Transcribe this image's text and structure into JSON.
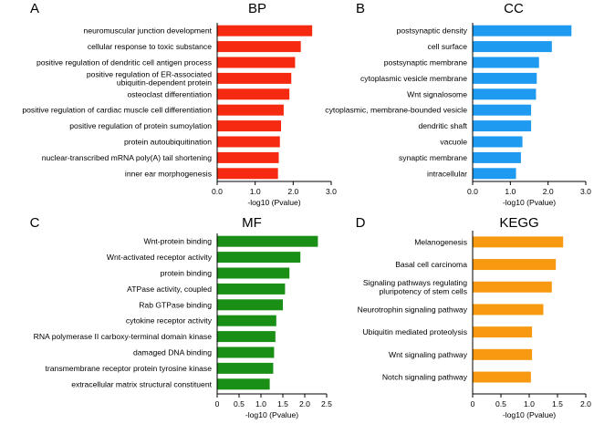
{
  "chart_data": [
    {
      "id": "bp",
      "type": "bar",
      "orientation": "horizontal",
      "letter": "A",
      "title": "BP",
      "color": "#f52a10",
      "xlabel": "-log10 (Pvalue)",
      "xlim": [
        0,
        3.0
      ],
      "xticks": [
        0,
        1,
        2,
        3
      ],
      "xtick_labels": [
        "0.0",
        "1.0",
        "2.0",
        "3.0"
      ],
      "categories": [
        "neuromuscular junction development",
        "cellular response to toxic substance",
        "positive regulation of dendritic cell antigen process",
        "positive regulation of ER-associated\nubiquitin-dependent protein",
        "osteoclast differentiation",
        "positive regulation of cardiac muscle cell differentiation",
        "positive regulation of protein sumoylation",
        "protein autoubiquitination",
        "nuclear-transcribed mRNA poly(A) tail shortening",
        "inner ear morphogenesis"
      ],
      "values": [
        2.5,
        2.2,
        2.05,
        1.95,
        1.9,
        1.75,
        1.68,
        1.65,
        1.62,
        1.6
      ]
    },
    {
      "id": "cc",
      "type": "bar",
      "orientation": "horizontal",
      "letter": "B",
      "title": "CC",
      "color": "#1e9bf0",
      "xlabel": "-log10 (Pvalue)",
      "xlim": [
        0,
        3.0
      ],
      "xticks": [
        0,
        1,
        2,
        3
      ],
      "xtick_labels": [
        "0.0",
        "1.0",
        "2.0",
        "3.0"
      ],
      "categories": [
        "postsynaptic density",
        "cell surface",
        "postsynaptic membrane",
        "cytoplasmic vesicle membrane",
        "Wnt signalosome",
        "cytoplasmic, membrane-bounded vesicle",
        "dendritic shaft",
        "vacuole",
        "synaptic membrane",
        "intracellular"
      ],
      "values": [
        2.62,
        2.1,
        1.76,
        1.7,
        1.68,
        1.55,
        1.55,
        1.32,
        1.28,
        1.15
      ]
    },
    {
      "id": "mf",
      "type": "bar",
      "orientation": "horizontal",
      "letter": "C",
      "title": "MF",
      "color": "#1a8f16",
      "xlabel": "-log10 (Pvalue)",
      "xlim": [
        0,
        2.5
      ],
      "xticks": [
        0,
        0.5,
        1.0,
        1.5,
        2.0,
        2.5
      ],
      "xtick_labels": [
        "0",
        "0.5",
        "1.0",
        "1.5",
        "2.0",
        "2.5"
      ],
      "categories": [
        "Wnt-protein binding",
        "Wnt-activated receptor activity",
        "protein binding",
        "ATPase activity, coupled",
        "Rab GTPase binding",
        "cytokine receptor activity",
        "RNA polymerase II carboxy-terminal domain kinase",
        "damaged DNA binding",
        "transmembrane receptor protein tyrosine kinase",
        "extracellular matrix structural constituent"
      ],
      "values": [
        2.3,
        1.9,
        1.65,
        1.55,
        1.5,
        1.35,
        1.33,
        1.3,
        1.28,
        1.2
      ]
    },
    {
      "id": "kegg",
      "type": "bar",
      "orientation": "horizontal",
      "letter": "D",
      "title": "KEGG",
      "color": "#f79a12",
      "xlabel": "-log10 (Pvalue)",
      "xlim": [
        0,
        2.0
      ],
      "xticks": [
        0,
        0.5,
        1.0,
        1.5,
        2.0
      ],
      "xtick_labels": [
        "0",
        "0.5",
        "1.0",
        "1.5",
        "2.0"
      ],
      "categories": [
        "Melanogenesis",
        "Basal cell carcinoma",
        "Signaling pathways regulating\npluripotency of stem cells",
        "Neurotrophin signaling pathway",
        "Ubiquitin mediated proteolysis",
        "Wnt signaling pathway",
        "Notch signaling pathway"
      ],
      "values": [
        1.6,
        1.47,
        1.4,
        1.25,
        1.05,
        1.05,
        1.03
      ]
    }
  ]
}
